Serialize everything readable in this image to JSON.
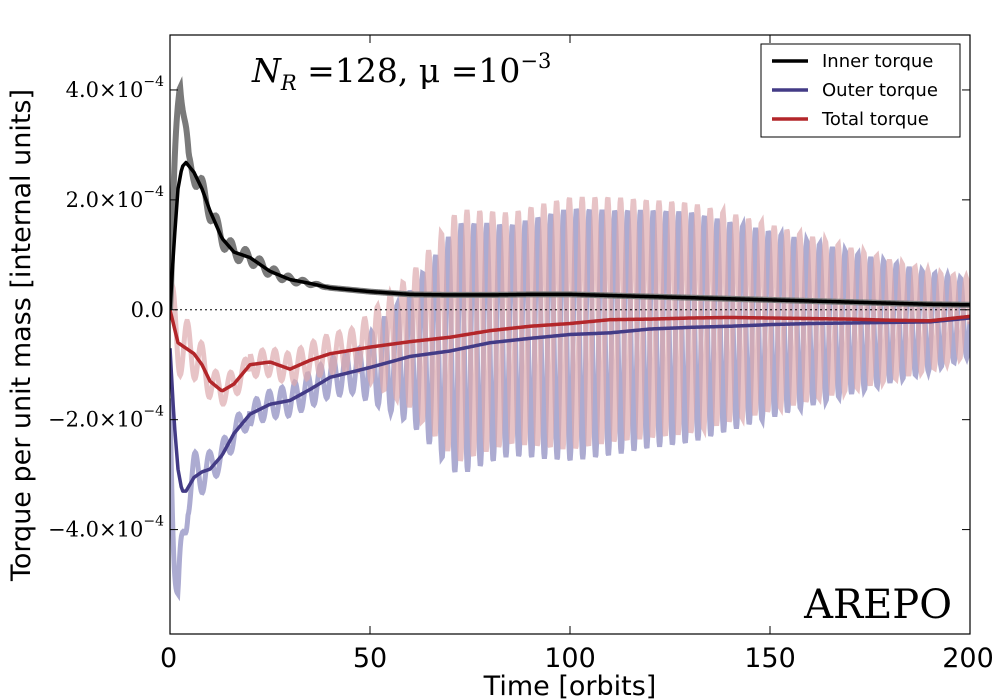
{
  "chart_data": {
    "type": "line",
    "title": "",
    "xlabel": "Time [orbits]",
    "ylabel": "Torque per unit mass [internal units]",
    "xlim": [
      0,
      200
    ],
    "ylim": [
      -0.00059,
      0.0005
    ],
    "x_ticks": [
      {
        "value": 0,
        "label": "0"
      },
      {
        "value": 50,
        "label": "50"
      },
      {
        "value": 100,
        "label": "100"
      },
      {
        "value": 150,
        "label": "150"
      },
      {
        "value": 200,
        "label": "200"
      }
    ],
    "y_ticks": [
      {
        "value": 0.0004,
        "mant": "4.0",
        "times": "×10",
        "exp": "−4"
      },
      {
        "value": 0.0002,
        "mant": "2.0",
        "times": "×10",
        "exp": "−4"
      },
      {
        "value": 0.0,
        "mant": "0.0",
        "times": "",
        "exp": ""
      },
      {
        "value": -0.0002,
        "mant": "−2.0",
        "times": "×10",
        "exp": "−4"
      },
      {
        "value": -0.0004,
        "mant": "−4.0",
        "times": "×10",
        "exp": "−4"
      }
    ],
    "zero_line": true,
    "legend_position": "top-right",
    "series": [
      {
        "name": "Inner torque",
        "color": "#000000",
        "raw_color": "#7a7a7a",
        "x": [
          0,
          1,
          2,
          3,
          4,
          6,
          8,
          10,
          13,
          16,
          20,
          25,
          30,
          35,
          40,
          50,
          60,
          70,
          80,
          90,
          100,
          110,
          120,
          130,
          140,
          150,
          160,
          170,
          180,
          190,
          200
        ],
        "y": [
          0,
          0.00012,
          0.00022,
          0.00026,
          0.000268,
          0.00025,
          0.00022,
          0.00018,
          0.00013,
          0.000105,
          9.5e-05,
          7e-05,
          5.5e-05,
          4.8e-05,
          4e-05,
          3.3e-05,
          2.8e-05,
          2.7e-05,
          2.7e-05,
          2.8e-05,
          2.8e-05,
          2.6e-05,
          2.4e-05,
          2.2e-05,
          2e-05,
          1.8e-05,
          1.6e-05,
          1.4e-05,
          1.2e-05,
          1e-05,
          9e-06
        ],
        "raw_peak": {
          "x": 2.5,
          "y": 0.00043
        }
      },
      {
        "name": "Outer torque",
        "color": "#433b86",
        "raw_color": "#9d9cc9",
        "x": [
          0,
          1,
          2,
          3,
          4,
          6,
          8,
          10,
          13,
          16,
          20,
          25,
          30,
          35,
          40,
          50,
          60,
          70,
          80,
          90,
          100,
          110,
          120,
          130,
          140,
          150,
          160,
          170,
          180,
          190,
          200
        ],
        "y": [
          -7e-05,
          -0.0002,
          -0.00029,
          -0.00033,
          -0.00033,
          -0.000305,
          -0.000295,
          -0.00029,
          -0.000265,
          -0.000225,
          -0.00019,
          -0.000172,
          -0.000165,
          -0.000145,
          -0.000123,
          -0.000105,
          -8.5e-05,
          -7.5e-05,
          -6e-05,
          -5.2e-05,
          -4.5e-05,
          -4.2e-05,
          -3.5e-05,
          -3.2e-05,
          -3e-05,
          -2.7e-05,
          -2.5e-05,
          -2.4e-05,
          -2.3e-05,
          -2.2e-05,
          -1.5e-05
        ],
        "raw_trough": {
          "x": 2,
          "y": -0.00055
        }
      },
      {
        "name": "Total torque",
        "color": "#b3262a",
        "raw_color": "#ddaaae",
        "x": [
          0,
          2,
          4,
          6,
          8,
          10,
          13,
          16,
          20,
          25,
          30,
          35,
          40,
          50,
          60,
          70,
          80,
          90,
          100,
          110,
          120,
          130,
          140,
          150,
          160,
          170,
          180,
          190,
          200
        ],
        "y": [
          0,
          -6e-05,
          -7e-05,
          -8e-05,
          -0.0001,
          -0.00013,
          -0.000148,
          -0.000135,
          -0.0001,
          -9.5e-05,
          -0.000108,
          -9.2e-05,
          -8e-05,
          -6.8e-05,
          -5.8e-05,
          -5e-05,
          -3.8e-05,
          -3e-05,
          -2.5e-05,
          -1.8e-05,
          -1.7e-05,
          -1.5e-05,
          -1.4e-05,
          -1.5e-05,
          -1.6e-05,
          -1.7e-05,
          -1.9e-05,
          -2e-05,
          -1.2e-05
        ]
      }
    ],
    "annotations": {
      "params_parts": [
        "N",
        "R",
        " =128, μ =10",
        "−3"
      ],
      "code_name": "AREPO"
    }
  }
}
